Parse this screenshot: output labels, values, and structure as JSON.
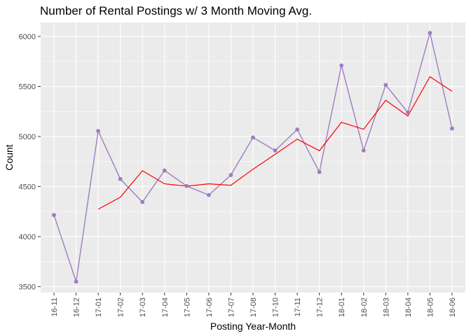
{
  "chart_data": {
    "type": "line",
    "title": "Number of Rental Postings w/ 3 Month Moving Avg.",
    "xlabel": "Posting Year-Month",
    "ylabel": "Count",
    "categories": [
      "16-11",
      "16-12",
      "17-01",
      "17-02",
      "17-03",
      "17-04",
      "17-05",
      "17-06",
      "17-07",
      "17-08",
      "17-10",
      "17-11",
      "17-12",
      "18-01",
      "18-02",
      "18-03",
      "18-04",
      "18-05",
      "18-06"
    ],
    "ylim": [
      3440,
      6140
    ],
    "yticks": [
      3500,
      4000,
      4500,
      5000,
      5500,
      6000
    ],
    "grid": true,
    "legend": "none",
    "series": [
      {
        "color": "#9e7cc1",
        "markers": true,
        "values": [
          4215,
          3550,
          5055,
          4575,
          4345,
          4660,
          4505,
          4415,
          4615,
          4990,
          4860,
          5070,
          4645,
          5710,
          4860,
          5515,
          5240,
          6035,
          5080
        ]
      },
      {
        "color": "#ff0000",
        "markers": false,
        "values": [
          null,
          null,
          4273,
          4393,
          4658,
          4527,
          4503,
          4527,
          4512,
          4673,
          4822,
          4973,
          4858,
          5142,
          5072,
          5362,
          5205,
          5597,
          5452
        ]
      }
    ]
  }
}
